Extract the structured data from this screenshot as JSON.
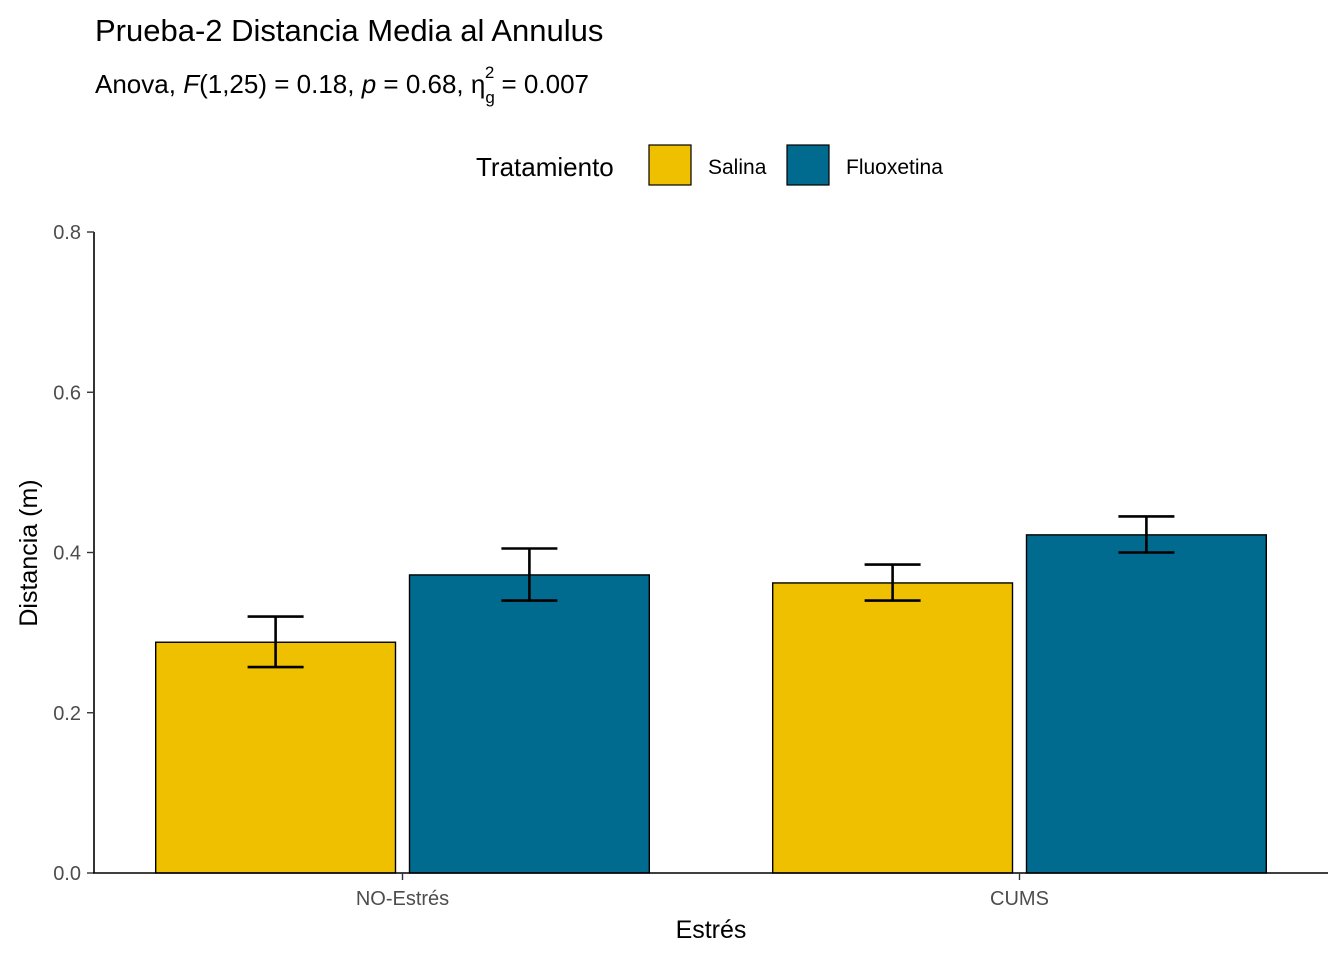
{
  "chart_data": {
    "type": "bar",
    "title": "Prueba-2 Distancia Media al Annulus",
    "subtitle": {
      "test": "Anova",
      "stat_symbol": "F",
      "df": "(1,25)",
      "stat_value": "= 0.18",
      "p_symbol": "p",
      "p_value": "= 0.68",
      "effect_symbol": "η",
      "effect_sub": "g",
      "effect_sup": "2",
      "effect_value": "= 0.007"
    },
    "xlabel": "Estrés",
    "ylabel": "Distancia (m)",
    "categories": [
      "NO-Estrés",
      "CUMS"
    ],
    "legend": {
      "title": "Tratamiento",
      "position": "top"
    },
    "series": [
      {
        "name": "Salina",
        "color": "#EFC000",
        "values": [
          0.288,
          0.362
        ],
        "error_low": [
          0.257,
          0.34
        ],
        "error_high": [
          0.32,
          0.385
        ]
      },
      {
        "name": "Fluoxetina",
        "color": "#006B8F",
        "values": [
          0.372,
          0.422
        ],
        "error_low": [
          0.34,
          0.4
        ],
        "error_high": [
          0.405,
          0.445
        ]
      }
    ],
    "ylim": [
      0,
      0.8
    ],
    "yticks": [
      "0.0",
      "0.2",
      "0.4",
      "0.6",
      "0.8"
    ],
    "grid": false
  }
}
